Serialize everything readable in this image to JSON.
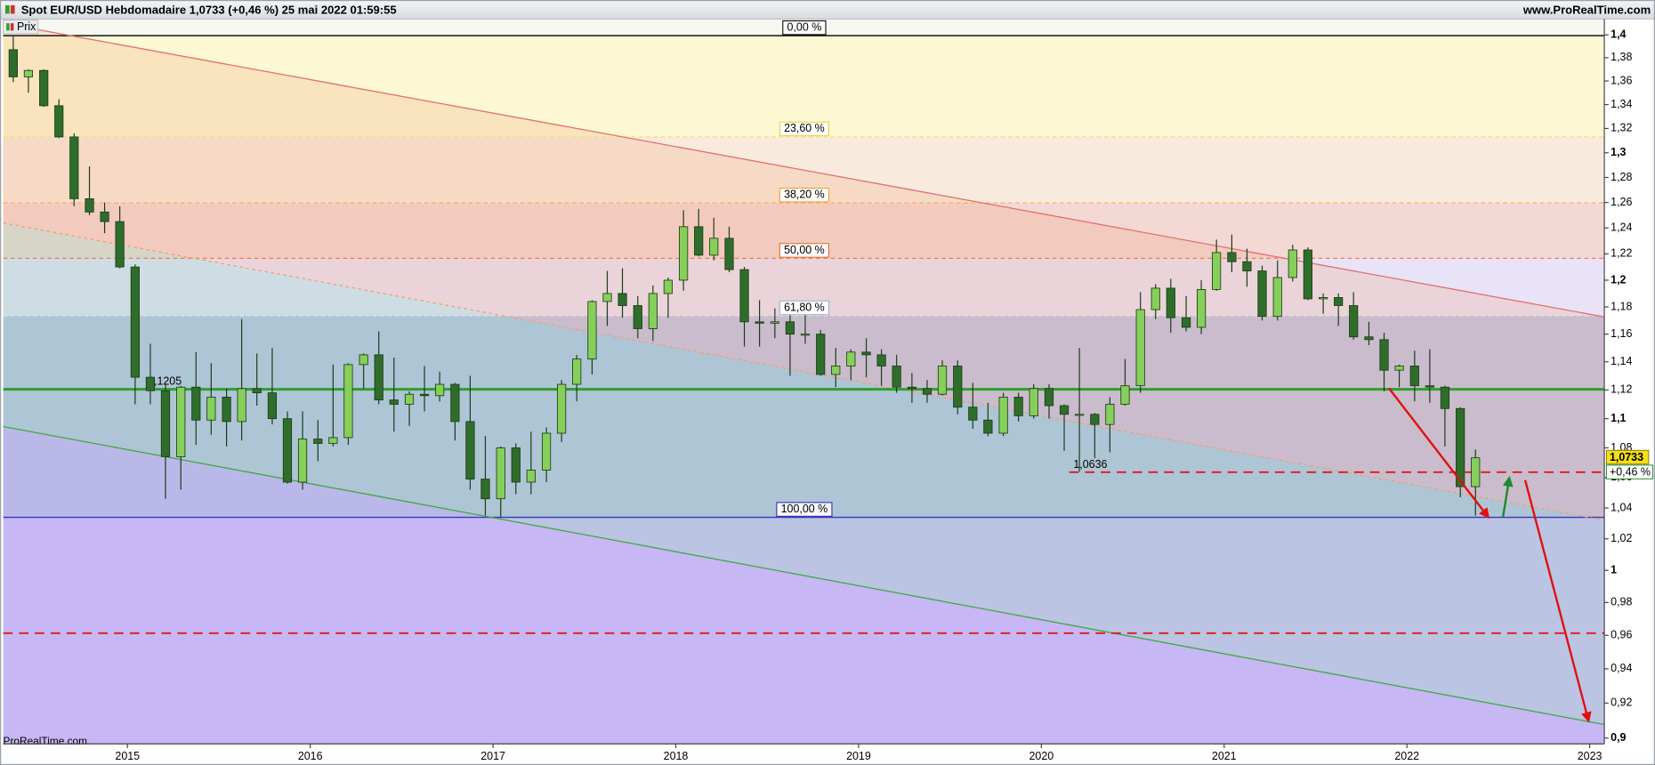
{
  "chart_data": {
    "type": "candlestick",
    "title": "Spot EUR/USD Hebdomadaire 1,0733 (+0,46 %) 25 mai 2022 01:59:55",
    "source": "www.ProRealTime.com",
    "watermark": "ProRealTime.com",
    "log_scale": true,
    "grid": false,
    "xlim": [
      2014.32,
      2023.08
    ],
    "xticks": [
      2015,
      2016,
      2017,
      2018,
      2019,
      2020,
      2021,
      2022,
      2023
    ],
    "ylim": [
      0.8967,
      1.414
    ],
    "yticks": [
      {
        "value": 0.9,
        "label": "0,9"
      },
      {
        "value": 0.92,
        "label": "0,92"
      },
      {
        "value": 0.94,
        "label": "0,94"
      },
      {
        "value": 0.96,
        "label": "0,96"
      },
      {
        "value": 0.98,
        "label": "0,98"
      },
      1,
      {
        "value": 1.02,
        "label": "1,02"
      },
      {
        "value": 1.04,
        "label": "1,04"
      },
      {
        "value": 1.06,
        "label": "1,06"
      },
      {
        "value": 1.08,
        "label": "1,08"
      },
      {
        "value": 1.1,
        "label": "1,1"
      },
      {
        "value": 1.12,
        "label": "1,12"
      },
      {
        "value": 1.14,
        "label": "1,14"
      },
      {
        "value": 1.16,
        "label": "1,16"
      },
      {
        "value": 1.18,
        "label": "1,18"
      },
      {
        "value": 1.2,
        "label": "1,2"
      },
      {
        "value": 1.22,
        "label": "1,22"
      },
      {
        "value": 1.24,
        "label": "1,24"
      },
      {
        "value": 1.26,
        "label": "1,26"
      },
      {
        "value": 1.28,
        "label": "1,28"
      },
      {
        "value": 1.3,
        "label": "1,3"
      },
      {
        "value": 1.32,
        "label": "1,32"
      },
      {
        "value": 1.34,
        "label": "1,34"
      },
      {
        "value": 1.36,
        "label": "1,36"
      },
      {
        "value": 1.38,
        "label": "1,38"
      },
      {
        "value": 1.4,
        "label": "1,4"
      }
    ],
    "x": [
      2014.375,
      2014.458,
      2014.542,
      2014.625,
      2014.708,
      2014.792,
      2014.875,
      2014.958,
      2015.042,
      2015.125,
      2015.208,
      2015.292,
      2015.375,
      2015.458,
      2015.542,
      2015.625,
      2015.708,
      2015.792,
      2015.875,
      2015.958,
      2016.042,
      2016.125,
      2016.208,
      2016.292,
      2016.375,
      2016.458,
      2016.542,
      2016.625,
      2016.708,
      2016.792,
      2016.875,
      2016.958,
      2017.042,
      2017.125,
      2017.208,
      2017.292,
      2017.375,
      2017.458,
      2017.542,
      2017.625,
      2017.708,
      2017.792,
      2017.875,
      2017.958,
      2018.042,
      2018.125,
      2018.208,
      2018.292,
      2018.375,
      2018.458,
      2018.542,
      2018.625,
      2018.708,
      2018.792,
      2018.875,
      2018.958,
      2019.042,
      2019.125,
      2019.208,
      2019.292,
      2019.375,
      2019.458,
      2019.542,
      2019.625,
      2019.708,
      2019.792,
      2019.875,
      2019.958,
      2020.042,
      2020.125,
      2020.208,
      2020.292,
      2020.375,
      2020.458,
      2020.542,
      2020.625,
      2020.708,
      2020.792,
      2020.875,
      2020.958,
      2021.042,
      2021.125,
      2021.208,
      2021.292,
      2021.375,
      2021.458,
      2021.542,
      2021.625,
      2021.708,
      2021.792,
      2021.875,
      2021.958,
      2022.042,
      2022.125,
      2022.208,
      2022.292,
      2022.375
    ],
    "series": [
      {
        "name": "Prix",
        "up_color": "#86cf5a",
        "down_color": "#2f6d2b",
        "edge_color": "#1b3a18",
        "open": [
          1.387,
          1.3635,
          1.369,
          1.339,
          1.313,
          1.263,
          1.2525,
          1.245,
          1.21,
          1.129,
          1.1195,
          1.074,
          1.122,
          1.099,
          1.115,
          1.098,
          1.121,
          1.118,
          1.1,
          1.057,
          1.086,
          1.083,
          1.087,
          1.138,
          1.145,
          1.113,
          1.11,
          1.117,
          1.116,
          1.124,
          1.098,
          1.059,
          1.046,
          1.08,
          1.057,
          1.065,
          1.09,
          1.124,
          1.142,
          1.184,
          1.19,
          1.181,
          1.164,
          1.19,
          1.2,
          1.241,
          1.219,
          1.232,
          1.208,
          1.169,
          1.168,
          1.169,
          1.16,
          1.16,
          1.131,
          1.137,
          1.147,
          1.145,
          1.137,
          1.122,
          1.121,
          1.117,
          1.137,
          1.108,
          1.099,
          1.09,
          1.115,
          1.102,
          1.121,
          1.109,
          1.103,
          1.103,
          1.096,
          1.11,
          1.123,
          1.178,
          1.194,
          1.172,
          1.165,
          1.193,
          1.221,
          1.214,
          1.207,
          1.173,
          1.202,
          1.223,
          1.186,
          1.187,
          1.181,
          1.158,
          1.156,
          1.134,
          1.137,
          1.123,
          1.122,
          1.107,
          1.054
        ],
        "high": [
          1.3993,
          1.37,
          1.37,
          1.3445,
          1.316,
          1.289,
          1.26,
          1.257,
          1.212,
          1.153,
          1.124,
          1.123,
          1.147,
          1.139,
          1.121,
          1.171,
          1.146,
          1.15,
          1.105,
          1.105,
          1.099,
          1.138,
          1.139,
          1.146,
          1.162,
          1.143,
          1.119,
          1.137,
          1.133,
          1.125,
          1.13,
          1.088,
          1.081,
          1.083,
          1.091,
          1.094,
          1.127,
          1.145,
          1.185,
          1.207,
          1.209,
          1.188,
          1.196,
          1.202,
          1.254,
          1.255,
          1.248,
          1.241,
          1.21,
          1.185,
          1.179,
          1.174,
          1.182,
          1.163,
          1.15,
          1.149,
          1.157,
          1.149,
          1.145,
          1.132,
          1.127,
          1.141,
          1.141,
          1.125,
          1.111,
          1.118,
          1.118,
          1.124,
          1.124,
          1.11,
          1.15,
          1.104,
          1.115,
          1.142,
          1.191,
          1.197,
          1.201,
          1.188,
          1.2,
          1.231,
          1.235,
          1.224,
          1.211,
          1.215,
          1.227,
          1.225,
          1.19,
          1.19,
          1.191,
          1.169,
          1.161,
          1.138,
          1.148,
          1.149,
          1.123,
          1.108,
          1.079
        ],
        "low": [
          1.359,
          1.35,
          1.338,
          1.312,
          1.257,
          1.25,
          1.236,
          1.209,
          1.11,
          1.11,
          1.046,
          1.052,
          1.082,
          1.089,
          1.081,
          1.085,
          1.109,
          1.096,
          1.056,
          1.052,
          1.071,
          1.081,
          1.082,
          1.121,
          1.11,
          1.091,
          1.095,
          1.105,
          1.112,
          1.085,
          1.052,
          1.035,
          1.034,
          1.049,
          1.049,
          1.057,
          1.084,
          1.112,
          1.131,
          1.166,
          1.172,
          1.157,
          1.155,
          1.172,
          1.192,
          1.218,
          1.215,
          1.206,
          1.151,
          1.151,
          1.157,
          1.13,
          1.153,
          1.13,
          1.122,
          1.127,
          1.129,
          1.123,
          1.118,
          1.111,
          1.111,
          1.116,
          1.103,
          1.093,
          1.088,
          1.088,
          1.098,
          1.1,
          1.1,
          1.078,
          1.064,
          1.073,
          1.077,
          1.109,
          1.118,
          1.171,
          1.161,
          1.162,
          1.16,
          1.192,
          1.206,
          1.195,
          1.17,
          1.17,
          1.199,
          1.185,
          1.175,
          1.166,
          1.156,
          1.152,
          1.119,
          1.122,
          1.112,
          1.111,
          1.081,
          1.047,
          1.035
        ],
        "close": [
          1.3635,
          1.369,
          1.339,
          1.313,
          1.263,
          1.2525,
          1.245,
          1.21,
          1.129,
          1.1195,
          1.074,
          1.122,
          1.099,
          1.115,
          1.098,
          1.121,
          1.118,
          1.1,
          1.057,
          1.086,
          1.083,
          1.087,
          1.138,
          1.145,
          1.113,
          1.11,
          1.117,
          1.116,
          1.124,
          1.098,
          1.059,
          1.046,
          1.08,
          1.057,
          1.065,
          1.09,
          1.124,
          1.142,
          1.184,
          1.19,
          1.181,
          1.164,
          1.19,
          1.2,
          1.241,
          1.219,
          1.232,
          1.208,
          1.169,
          1.168,
          1.169,
          1.16,
          1.16,
          1.131,
          1.137,
          1.147,
          1.145,
          1.137,
          1.122,
          1.121,
          1.117,
          1.137,
          1.108,
          1.099,
          1.09,
          1.115,
          1.102,
          1.121,
          1.109,
          1.103,
          1.103,
          1.096,
          1.11,
          1.123,
          1.178,
          1.194,
          1.172,
          1.165,
          1.193,
          1.221,
          1.214,
          1.207,
          1.173,
          1.202,
          1.223,
          1.186,
          1.187,
          1.181,
          1.158,
          1.156,
          1.134,
          1.137,
          1.123,
          1.122,
          1.107,
          1.054,
          1.0733
        ]
      }
    ],
    "fib_levels": [
      {
        "label": "0,00 %",
        "value": 1.3993,
        "color": "#000000",
        "text_color": "#000000",
        "zone": "#fcf8d4",
        "dash": false
      },
      {
        "label": "23,60 %",
        "value": 1.3131,
        "color": "#f0e070",
        "text_color": "#e6d23a",
        "zone": "#f8ebde",
        "dash": true
      },
      {
        "label": "38,20 %",
        "value": 1.2597,
        "color": "#f5b060",
        "text_color": "#f0a030",
        "zone": "#f4d8d4",
        "dash": true
      },
      {
        "label": "50,00 %",
        "value": 1.2166,
        "color": "#e88060",
        "text_color": "#e07020",
        "zone": "#e8e3f6",
        "dash": true
      },
      {
        "label": "61,80 %",
        "value": 1.1735,
        "color": "#e0e4f0",
        "text_color": "#9fb0cc",
        "zone": "#bfc4e6",
        "dash": true
      },
      {
        "label": "100,00 %",
        "value": 1.0339,
        "color": "#3535b8",
        "text_color": "#2a2ab0",
        "zone": "#d0c3f6",
        "dash": false
      }
    ],
    "trendlines": [
      {
        "x": [
          2014.32,
          2023.08
        ],
        "y": [
          1.4102,
          1.1726
        ],
        "color": "#e07070",
        "fill": "#f0a070",
        "dash": false
      },
      {
        "x": [
          2014.32,
          2023.08
        ],
        "y": [
          1.244,
          1.0319
        ],
        "color": "#f0a070",
        "fill": "#70c8a0",
        "dash": true
      },
      {
        "x": [
          2014.32,
          2023.08
        ],
        "y": [
          1.0946,
          0.9077
        ],
        "color": "#40a840",
        "fill": "#a78ef0",
        "dash": false
      }
    ],
    "levels": [
      {
        "label": "1,1205",
        "value": 1.1205,
        "color": "#2ca02c",
        "dash": false
      },
      {
        "label": "1,0636",
        "value": 1.0636,
        "color": "#e01818",
        "dash": true
      },
      {
        "value": 0.9613,
        "color": "#e01818",
        "dash": true
      }
    ],
    "last_price": {
      "value": 1.0733,
      "label": "1,0733"
    },
    "change": {
      "value": 0.46,
      "label": "+0,46 %"
    }
  }
}
